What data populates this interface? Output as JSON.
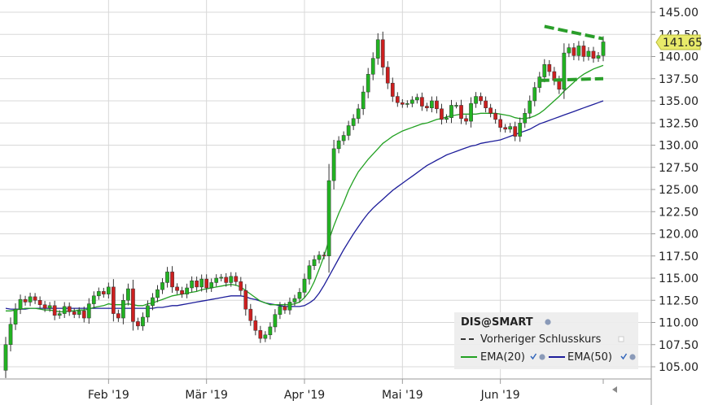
{
  "chart_data": {
    "type": "candlestick",
    "symbol": "DIS@SMART",
    "ylim": [
      103.5,
      146.0
    ],
    "y_ticks": [
      "105.00",
      "107.50",
      "110.00",
      "112.50",
      "115.00",
      "117.50",
      "120.00",
      "122.50",
      "125.00",
      "127.50",
      "130.00",
      "132.50",
      "135.00",
      "137.50",
      "140.00",
      "142.50",
      "145.00"
    ],
    "x_ticks": [
      "Feb '19",
      "Mär '19",
      "Apr '19",
      "Mai '19",
      "Jun '19"
    ],
    "x_tick_days": [
      21,
      41,
      61,
      81,
      101
    ],
    "n_days": 123,
    "last_price": "141.65",
    "grid": true,
    "legend": {
      "title": "DIS@SMART",
      "prev_close": "Vorheriger Schlusskurs",
      "ema20": "EMA(20)",
      "ema50": "EMA(50)",
      "placement": "bottom-right"
    },
    "colors": {
      "up": "#22b322",
      "down": "#cc1f1f",
      "ema20": "#22a122",
      "ema50": "#1d1d9a",
      "trend": "#2a9e2a",
      "grid": "#d8d8d8",
      "price_tag": "#e8ea6a"
    },
    "candles_close": [
      107.5,
      109.8,
      111.5,
      112.6,
      112.3,
      112.9,
      112.5,
      112.0,
      111.6,
      111.9,
      110.8,
      111.0,
      111.8,
      111.2,
      110.9,
      111.3,
      110.5,
      112.1,
      113.0,
      113.5,
      113.2,
      114.0,
      111.0,
      110.5,
      112.5,
      113.8,
      110.1,
      109.6,
      110.6,
      111.9,
      112.8,
      113.7,
      114.5,
      115.7,
      114.0,
      113.6,
      113.2,
      113.9,
      114.7,
      114.0,
      114.9,
      113.9,
      114.5,
      115.0,
      115.1,
      114.5,
      115.2,
      114.6,
      113.6,
      111.5,
      110.2,
      109.1,
      108.2,
      108.6,
      109.5,
      110.9,
      111.8,
      111.4,
      112.3,
      112.7,
      113.4,
      114.9,
      116.4,
      117.1,
      117.6,
      117.5,
      126.0,
      129.6,
      130.5,
      131.1,
      132.2,
      133.0,
      134.1,
      136.0,
      138.0,
      139.8,
      141.9,
      138.8,
      137.0,
      135.5,
      134.8,
      134.6,
      134.7,
      135.1,
      135.4,
      134.4,
      134.2,
      135.0,
      134.1,
      132.9,
      133.1,
      134.5,
      134.5,
      133.0,
      132.7,
      134.7,
      135.5,
      135.0,
      134.2,
      133.6,
      132.9,
      132.0,
      131.8,
      132.1,
      131.0,
      132.5,
      133.6,
      135.0,
      136.5,
      137.7,
      139.1,
      138.3,
      137.3,
      136.3,
      140.4,
      141.0,
      140.1,
      141.2,
      140.0,
      140.6,
      139.8,
      140.1,
      141.65
    ],
    "ema20": [
      111.3,
      111.3,
      111.4,
      111.5,
      111.6,
      111.6,
      111.6,
      111.5,
      111.4,
      111.4,
      111.3,
      111.2,
      111.2,
      111.3,
      111.3,
      111.4,
      111.4,
      111.5,
      111.7,
      111.8,
      111.9,
      112.1,
      112.0,
      112.0,
      112.0,
      112.1,
      112.0,
      111.9,
      111.9,
      112.1,
      112.2,
      112.4,
      112.6,
      112.8,
      113.0,
      113.1,
      113.2,
      113.3,
      113.4,
      113.5,
      113.7,
      113.8,
      113.9,
      114.0,
      114.1,
      114.2,
      114.3,
      114.2,
      114.0,
      113.6,
      113.2,
      112.8,
      112.4,
      112.2,
      112.0,
      112.0,
      112.0,
      112.0,
      112.0,
      112.1,
      112.3,
      112.8,
      113.5,
      114.6,
      116.0,
      117.5,
      119.3,
      120.9,
      122.3,
      123.5,
      124.9,
      126.0,
      127.0,
      127.7,
      128.4,
      129.0,
      129.6,
      130.2,
      130.6,
      131.0,
      131.3,
      131.6,
      131.8,
      132.0,
      132.2,
      132.4,
      132.5,
      132.7,
      132.9,
      133.0,
      133.2,
      133.3,
      133.4,
      133.5,
      133.5,
      133.5,
      133.5,
      133.6,
      133.6,
      133.6,
      133.6,
      133.5,
      133.4,
      133.3,
      133.1,
      133.0,
      133.0,
      133.1,
      133.3,
      133.6,
      134.0,
      134.5,
      135.0,
      135.5,
      136.1,
      136.6,
      137.1,
      137.6,
      138.0,
      138.3,
      138.6,
      138.8,
      139.0
    ],
    "ema50": [
      111.6,
      111.5,
      111.5,
      111.5,
      111.5,
      111.6,
      111.6,
      111.6,
      111.6,
      111.6,
      111.6,
      111.6,
      111.6,
      111.6,
      111.6,
      111.6,
      111.6,
      111.6,
      111.6,
      111.6,
      111.6,
      111.6,
      111.6,
      111.6,
      111.6,
      111.6,
      111.6,
      111.6,
      111.6,
      111.6,
      111.6,
      111.7,
      111.7,
      111.8,
      111.9,
      111.9,
      112.0,
      112.1,
      112.2,
      112.3,
      112.4,
      112.5,
      112.6,
      112.7,
      112.8,
      112.9,
      113.0,
      113.0,
      113.0,
      112.9,
      112.7,
      112.6,
      112.4,
      112.2,
      112.1,
      112.0,
      111.9,
      111.8,
      111.8,
      111.8,
      111.8,
      111.9,
      112.2,
      112.6,
      113.3,
      114.2,
      115.2,
      116.2,
      117.2,
      118.2,
      119.1,
      120.0,
      120.8,
      121.6,
      122.3,
      122.9,
      123.4,
      123.9,
      124.4,
      124.9,
      125.3,
      125.7,
      126.1,
      126.5,
      126.9,
      127.3,
      127.7,
      128.0,
      128.3,
      128.6,
      128.9,
      129.1,
      129.3,
      129.5,
      129.7,
      129.9,
      130.0,
      130.2,
      130.3,
      130.4,
      130.5,
      130.6,
      130.8,
      131.0,
      131.2,
      131.4,
      131.6,
      131.8,
      132.1,
      132.4,
      132.6,
      132.8,
      133.0,
      133.2,
      133.4,
      133.6,
      133.8,
      134.0,
      134.2,
      134.4,
      134.6,
      134.8,
      135.0
    ],
    "trend_upper": [
      [
        110,
        143.4
      ],
      [
        122,
        142.0
      ]
    ],
    "trend_lower": [
      [
        109,
        137.3
      ],
      [
        122,
        137.5
      ]
    ]
  }
}
